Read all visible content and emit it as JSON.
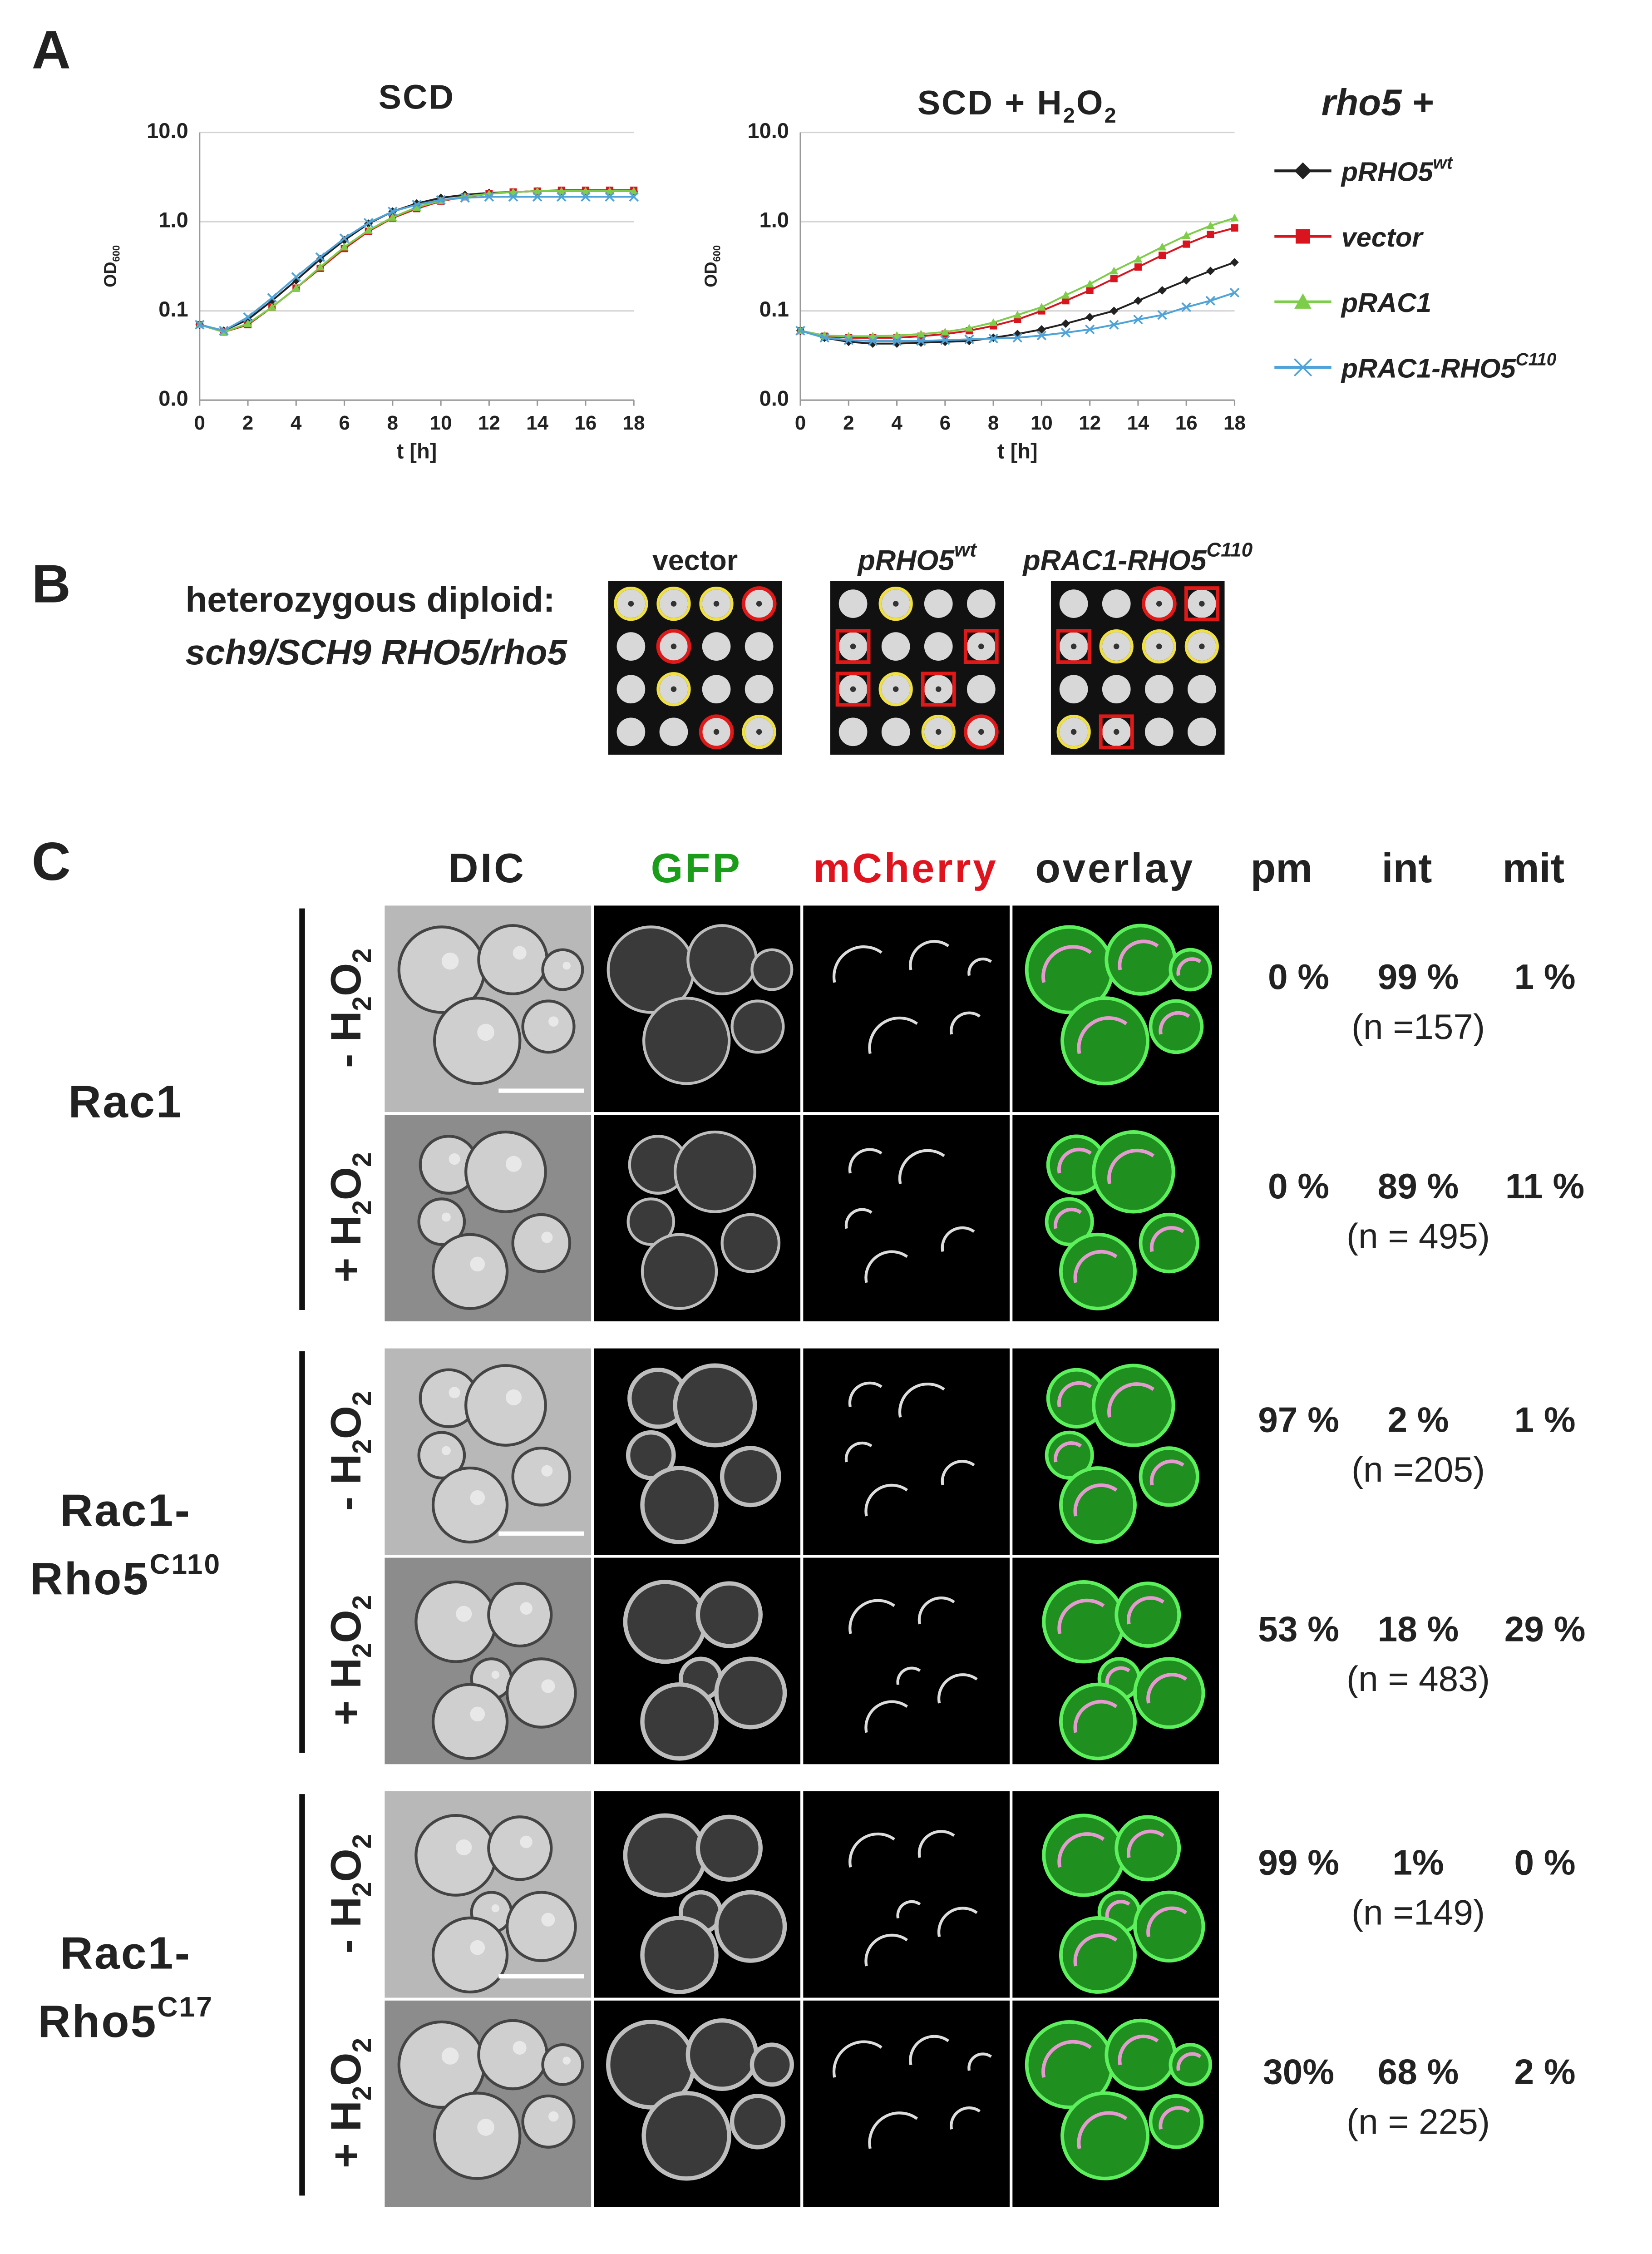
{
  "panel_a": {
    "label": "A"
  },
  "chart_data": [
    {
      "type": "line",
      "title": "SCD",
      "xlabel": "t [h]",
      "ylabel": "OD",
      "ylabel_sub": "600",
      "log_y": true,
      "grid": true,
      "x": [
        0,
        1,
        2,
        3,
        4,
        5,
        6,
        7,
        8,
        9,
        10,
        11,
        12,
        13,
        14,
        15,
        16,
        17,
        18
      ],
      "xlim": [
        0,
        18
      ],
      "xticks": [
        0,
        2,
        4,
        6,
        8,
        10,
        12,
        14,
        16,
        18
      ],
      "ylim": [
        0.01,
        10
      ],
      "yticks": [
        {
          "value": 0.01,
          "label": "0.0"
        },
        {
          "value": 0.1,
          "label": "0.1"
        },
        {
          "value": 1,
          "label": "1.0"
        },
        {
          "value": 10,
          "label": "10.0"
        }
      ],
      "series": [
        {
          "color": "#222222",
          "marker": "diamond",
          "values": [
            0.07,
            0.06,
            0.08,
            0.13,
            0.22,
            0.38,
            0.62,
            0.95,
            1.3,
            1.6,
            1.85,
            2.0,
            2.1,
            2.15,
            2.2,
            2.2,
            2.2,
            2.2,
            2.2
          ]
        },
        {
          "color": "#d9141e",
          "marker": "square",
          "values": [
            0.07,
            0.058,
            0.07,
            0.11,
            0.18,
            0.3,
            0.5,
            0.78,
            1.1,
            1.4,
            1.7,
            1.9,
            2.05,
            2.15,
            2.2,
            2.25,
            2.25,
            2.25,
            2.25
          ]
        },
        {
          "color": "#7dcd4a",
          "marker": "triangle",
          "values": [
            0.07,
            0.058,
            0.072,
            0.11,
            0.18,
            0.31,
            0.52,
            0.8,
            1.12,
            1.45,
            1.72,
            1.92,
            2.05,
            2.15,
            2.2,
            2.2,
            2.2,
            2.2,
            2.2
          ]
        },
        {
          "color": "#4fa3d8",
          "marker": "x",
          "values": [
            0.07,
            0.06,
            0.085,
            0.14,
            0.24,
            0.4,
            0.65,
            0.97,
            1.3,
            1.55,
            1.75,
            1.85,
            1.9,
            1.9,
            1.9,
            1.9,
            1.9,
            1.9,
            1.9
          ]
        }
      ]
    },
    {
      "type": "line",
      "title": "SCD + H2O2",
      "xlabel": "t [h]",
      "ylabel": "OD",
      "ylabel_sub": "600",
      "log_y": true,
      "grid": true,
      "legend_title": "rho5 +",
      "x": [
        0,
        1,
        2,
        3,
        4,
        5,
        6,
        7,
        8,
        9,
        10,
        11,
        12,
        13,
        14,
        15,
        16,
        17,
        18
      ],
      "xlim": [
        0,
        18
      ],
      "xticks": [
        0,
        2,
        4,
        6,
        8,
        10,
        12,
        14,
        16,
        18
      ],
      "ylim": [
        0.01,
        10
      ],
      "yticks": [
        {
          "value": 0.01,
          "label": "0.0"
        },
        {
          "value": 0.1,
          "label": "0.1"
        },
        {
          "value": 1,
          "label": "1.0"
        },
        {
          "value": 10,
          "label": "10.0"
        }
      ],
      "series": [
        {
          "name": "pRHO5",
          "name_sup": "wt",
          "color": "#222222",
          "marker": "diamond",
          "values": [
            0.06,
            0.05,
            0.045,
            0.043,
            0.043,
            0.044,
            0.045,
            0.046,
            0.05,
            0.055,
            0.062,
            0.072,
            0.085,
            0.1,
            0.13,
            0.17,
            0.22,
            0.28,
            0.35
          ]
        },
        {
          "name": "vector",
          "color": "#d9141e",
          "marker": "square",
          "values": [
            0.06,
            0.052,
            0.05,
            0.05,
            0.05,
            0.052,
            0.055,
            0.06,
            0.068,
            0.08,
            0.1,
            0.13,
            0.17,
            0.23,
            0.31,
            0.42,
            0.56,
            0.72,
            0.85
          ]
        },
        {
          "name": "pRAC1",
          "color": "#7dcd4a",
          "marker": "triangle",
          "values": [
            0.06,
            0.053,
            0.052,
            0.052,
            0.053,
            0.055,
            0.058,
            0.064,
            0.074,
            0.09,
            0.11,
            0.15,
            0.2,
            0.28,
            0.38,
            0.52,
            0.7,
            0.9,
            1.1
          ]
        },
        {
          "name": "pRAC1-RHO5",
          "name_sup": "C110",
          "color": "#4fa3d8",
          "marker": "x",
          "values": [
            0.06,
            0.05,
            0.047,
            0.046,
            0.046,
            0.046,
            0.047,
            0.048,
            0.049,
            0.05,
            0.053,
            0.057,
            0.062,
            0.07,
            0.08,
            0.09,
            0.11,
            0.13,
            0.16
          ]
        }
      ]
    }
  ],
  "panel_b": {
    "label": "B",
    "lines": [
      "heterozygous diploid:",
      "sch9/SCH9 RHO5/rho5"
    ],
    "plates": [
      {
        "label": "vector"
      },
      {
        "label": "pRHO5",
        "sup": "wt"
      },
      {
        "label": "pRAC1-RHO5",
        "sup": "C110"
      }
    ]
  },
  "panel_c": {
    "label": "C",
    "columns": [
      "DIC",
      "GFP",
      "mCherry",
      "overlay"
    ],
    "stat_headers": [
      "pm",
      "int",
      "mit"
    ],
    "groups": [
      {
        "name": [
          "Rac1"
        ],
        "rows": [
          {
            "condition": "- H2O2",
            "stats": [
              "0 %",
              "99 %",
              "1 %"
            ],
            "n": "(n =157)"
          },
          {
            "condition": "+ H2O2",
            "stats": [
              "0 %",
              "89 %",
              "11 %"
            ],
            "n": "(n = 495)"
          }
        ]
      },
      {
        "name": [
          "Rac1-",
          "Rho5"
        ],
        "name_sup": "C110",
        "rows": [
          {
            "condition": "- H2O2",
            "stats": [
              "97 %",
              "2 %",
              "1 %"
            ],
            "n": "(n =205)"
          },
          {
            "condition": "+ H2O2",
            "stats": [
              "53 %",
              "18 %",
              "29 %"
            ],
            "n": "(n = 483)"
          }
        ]
      },
      {
        "name": [
          "Rac1-",
          "Rho5"
        ],
        "name_sup": "C17",
        "rows": [
          {
            "condition": "- H2O2",
            "stats": [
              "99 %",
              "1%",
              "0 %"
            ],
            "n": "(n =149)"
          },
          {
            "condition": "+ H2O2",
            "stats": [
              "30%",
              "68 %",
              "2 %"
            ],
            "n": "(n = 225)"
          }
        ]
      }
    ]
  }
}
